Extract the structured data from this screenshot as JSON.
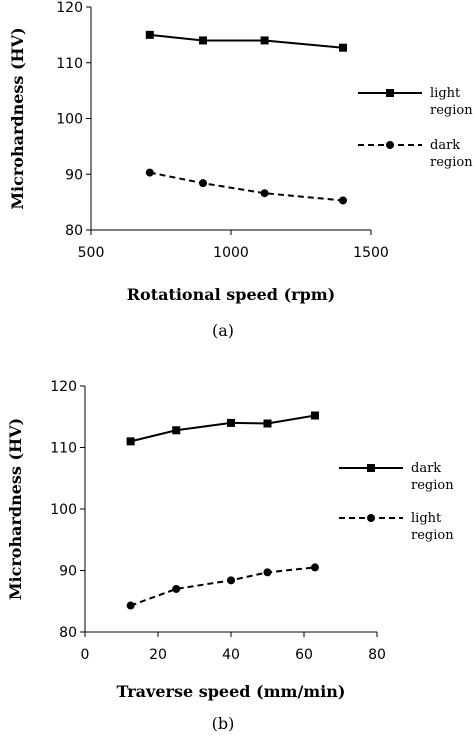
{
  "chart_data": [
    {
      "type": "line",
      "panel_label": "(a)",
      "xlabel": "Rotational speed (rpm)",
      "ylabel": "Microhardness (HV)",
      "xlim": [
        500,
        1500
      ],
      "ylim": [
        80,
        120
      ],
      "xticks": [
        500,
        1000,
        1500
      ],
      "yticks": [
        80,
        90,
        100,
        110,
        120
      ],
      "grid": false,
      "legend_position": "right",
      "series": [
        {
          "name": "light region",
          "legend_lines": [
            "light",
            "region"
          ],
          "marker": "square",
          "line_style": "solid",
          "x": [
            710,
            900,
            1120,
            1400
          ],
          "y": [
            115,
            114,
            114,
            112.7
          ]
        },
        {
          "name": "dark region",
          "legend_lines": [
            "dark",
            "region"
          ],
          "marker": "circle",
          "line_style": "dashed",
          "x": [
            710,
            900,
            1120,
            1400
          ],
          "y": [
            90.3,
            88.4,
            86.6,
            85.3
          ]
        }
      ]
    },
    {
      "type": "line",
      "panel_label": "(b)",
      "xlabel": "Traverse speed (mm/min)",
      "ylabel": "Microhardness (HV)",
      "xlim": [
        0,
        80
      ],
      "ylim": [
        80,
        120
      ],
      "xticks": [
        0,
        20,
        40,
        60,
        80
      ],
      "yticks": [
        80,
        90,
        100,
        110,
        120
      ],
      "grid": false,
      "legend_position": "right",
      "series": [
        {
          "name": "dark region",
          "legend_lines": [
            "dark",
            "region"
          ],
          "marker": "square",
          "line_style": "solid",
          "x": [
            12.5,
            25,
            40,
            50,
            63
          ],
          "y": [
            111,
            112.8,
            114,
            113.9,
            115.2
          ]
        },
        {
          "name": "light region",
          "legend_lines": [
            "light",
            "region"
          ],
          "marker": "circle",
          "line_style": "dashed",
          "x": [
            12.5,
            25,
            40,
            50,
            63
          ],
          "y": [
            84.3,
            87,
            88.4,
            89.7,
            90.5
          ]
        }
      ]
    }
  ]
}
